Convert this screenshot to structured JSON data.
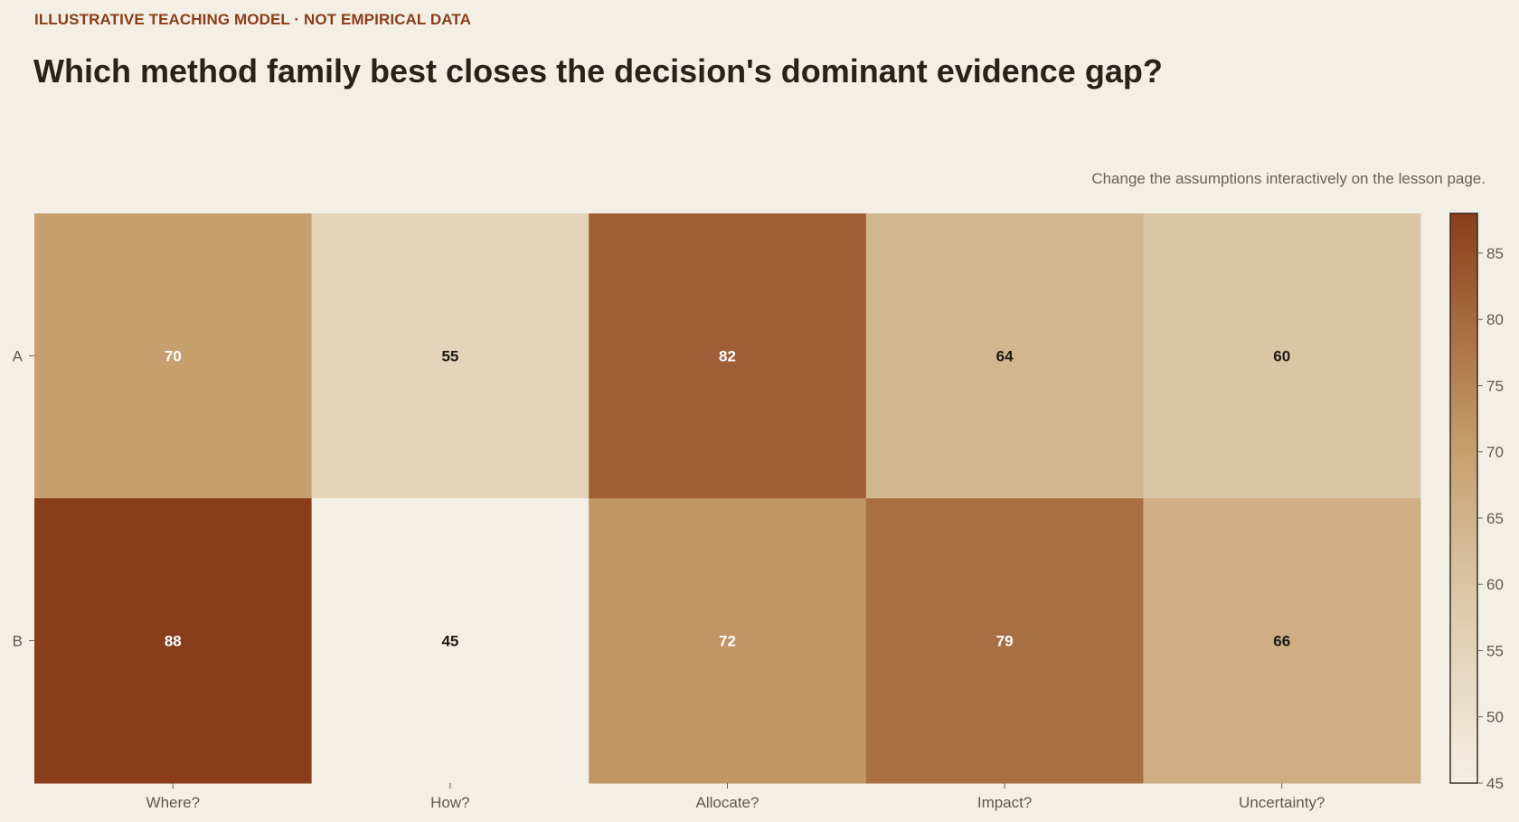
{
  "header": {
    "kicker": "ILLUSTRATIVE TEACHING MODEL · NOT EMPIRICAL DATA",
    "title": "Which method family best closes the decision's dominant evidence gap?",
    "note": "Change the assumptions interactively on the lesson page."
  },
  "chart_data": {
    "type": "heatmap",
    "title": "Which method family best closes the decision's dominant evidence gap?",
    "x_categories": [
      "Where?",
      "How?",
      "Allocate?",
      "Impact?",
      "Uncertainty?"
    ],
    "y_categories": [
      "A",
      "B"
    ],
    "values": [
      [
        70,
        55,
        82,
        64,
        60
      ],
      [
        88,
        45,
        72,
        79,
        66
      ]
    ],
    "colorbar": {
      "min": 45,
      "max": 88,
      "ticks": [
        45,
        50,
        55,
        60,
        65,
        70,
        75,
        80,
        85
      ]
    },
    "colors": {
      "low": "#F4EFE4",
      "mid_low": "#DCC8A8",
      "mid": "#C59C6A",
      "high": "#8A3D1A",
      "light_text": "#FFFFFF",
      "dark_text": "#1E1A16"
    }
  }
}
